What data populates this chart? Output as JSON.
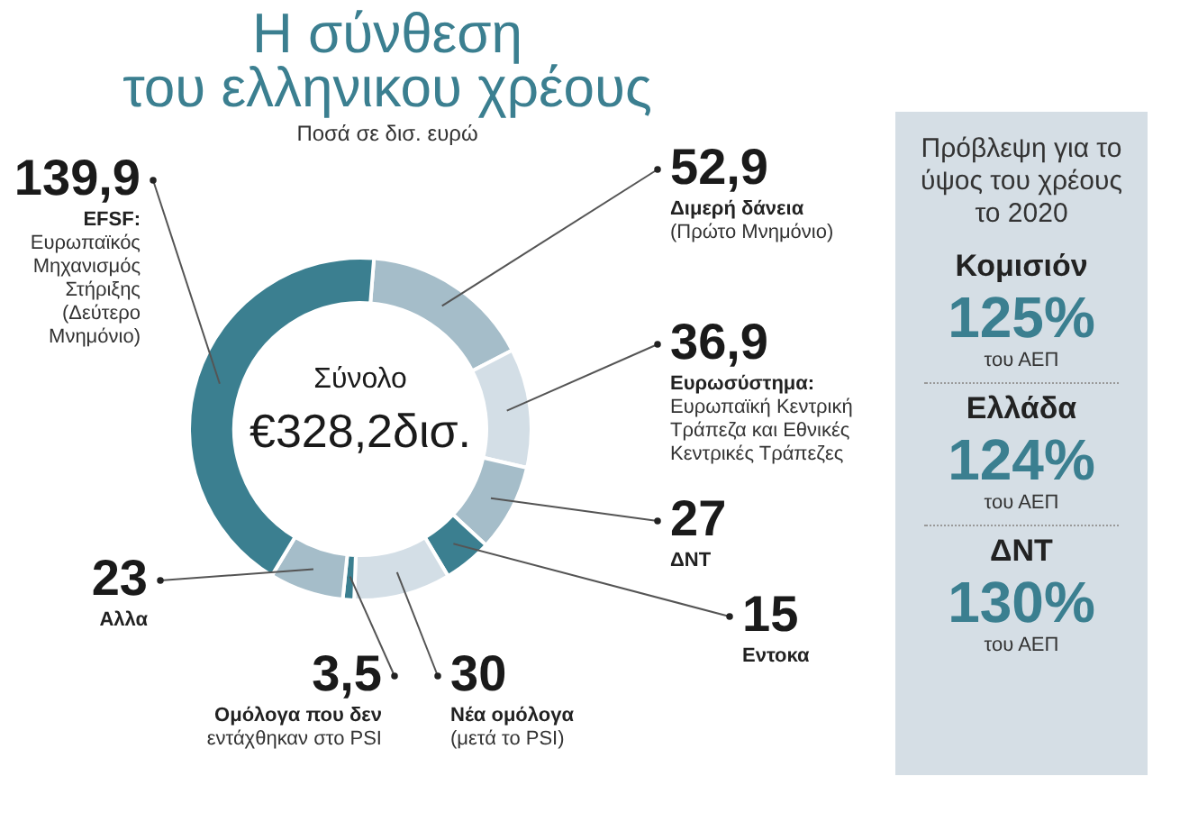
{
  "chart_data": [
    {
      "type": "donut",
      "title": "Η σύνθεση του ελληνικου χρέους",
      "subtitle": "Ποσά σε δισ. ευρώ",
      "categories": [
        "Διμερή δάνεια\n(Πρώτο Μνημόνιο)",
        "Ευρωσύστημα:\nΕυρωπαϊκή Κεντρική\nΤράπεζα και Εθνικές\nΚεντρικές Τράπεζες",
        "ΔΝΤ",
        "Εντοκα",
        "Νέα ομόλογα\n(μετά το PSI)",
        "Ομόλογα που δεν\nεντάχθηκαν στο PSI",
        "Αλλα",
        "EFSF:\nΕυρωπαϊκός\nΜηχανισμός\nΣτήριξης\n(Δεύτερο\nΜνημόνιο)"
      ],
      "values": [
        52.9,
        36.9,
        27,
        15,
        30,
        3.5,
        23,
        139.9
      ],
      "value_labels": [
        "52,9",
        "36,9",
        "27",
        "15",
        "30",
        "3,5",
        "23",
        "139,9"
      ],
      "colors": [
        "#a5bdc9",
        "#d3dee6",
        "#a5bdc9",
        "#3b7f90",
        "#d3dee6",
        "#3b7f90",
        "#a5bdc9",
        "#3b7f90"
      ],
      "annotations": [
        "Σύνολο",
        "€328,2δισ."
      ]
    },
    {
      "type": "other",
      "title": "Πρόβλεψη για το ύψος του χρέους το 2020",
      "annotations": [
        "Κομισιόν",
        "125%",
        "του ΑΕΠ",
        "Ελλάδα",
        "124%",
        "του ΑΕΠ",
        "ΔΝΤ",
        "130%",
        "του ΑΕΠ"
      ]
    }
  ]
}
